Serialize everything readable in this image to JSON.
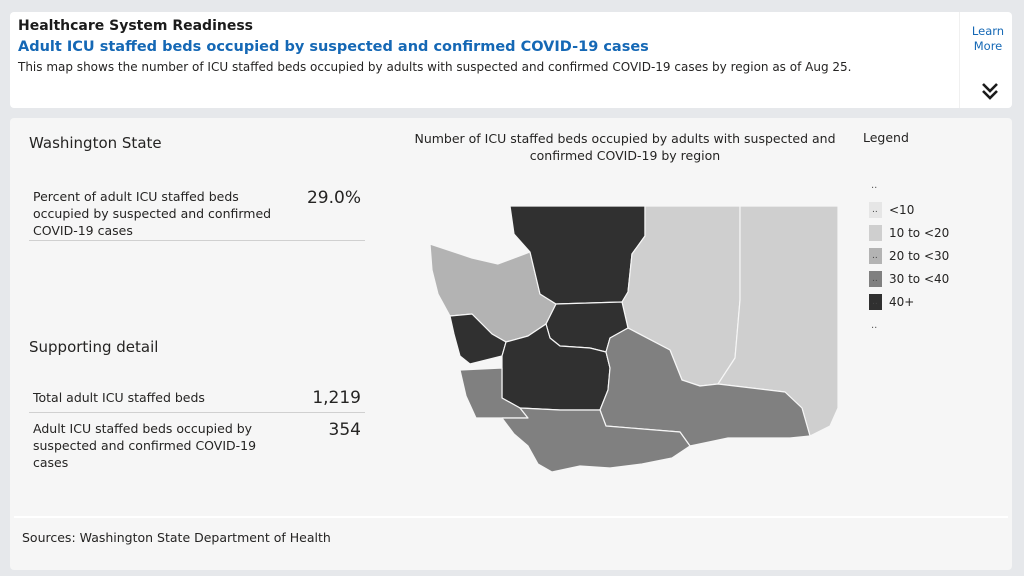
{
  "header": {
    "title": "Healthcare System Readiness",
    "subtitle": "Adult ICU staffed beds occupied by suspected and confirmed COVID-19 cases",
    "description": "This map shows the number of ICU staffed beds occupied by adults with suspected and confirmed COVID-19 cases by region as of Aug 25.",
    "learn_more": "Learn More",
    "expand_icon": "double-chevron-down-icon"
  },
  "summary": {
    "state_name": "Washington State",
    "pct_label": "Percent of adult ICU staffed beds occupied by suspected and confirmed COVID-19 cases",
    "pct_value": "29.0%",
    "supporting_title": "Supporting detail",
    "total_label": "Total adult ICU staffed beds",
    "total_value": "1,219",
    "occupied_label": "Adult ICU staffed beds occupied by suspected and confirmed COVID-19 cases",
    "occupied_value": "354"
  },
  "map": {
    "title": "Number of ICU staffed beds occupied by adults with suspected and confirmed COVID-19 by region",
    "legend_title": "Legend",
    "legend_top_marker": "..",
    "legend_bottom_marker": "..",
    "legend": [
      {
        "label": "<10",
        "prefix": "..",
        "color": "#e6e6e6"
      },
      {
        "label": "10 to <20",
        "prefix": "",
        "color": "#cfcfcf"
      },
      {
        "label": "20 to <30",
        "prefix": "..",
        "color": "#b3b3b3"
      },
      {
        "label": "30 to <40",
        "prefix": "..",
        "color": "#808080"
      },
      {
        "label": "40+",
        "prefix": "..",
        "color": "#303030"
      }
    ],
    "region_colors": {
      "olympic_north": "#b3b3b3",
      "northwest": "#303030",
      "north_central": "#cfcfcf",
      "eastern": "#cfcfcf",
      "central_sound": "#303030",
      "west_pacific": "#303030",
      "south_central_sound": "#303030",
      "central": "#808080",
      "southwest_coast": "#808080",
      "southwest": "#808080",
      "south_central": "#808080",
      "southeast": "#cfcfcf"
    }
  },
  "footer": {
    "sources": "Sources: Washington State Department of Health"
  }
}
